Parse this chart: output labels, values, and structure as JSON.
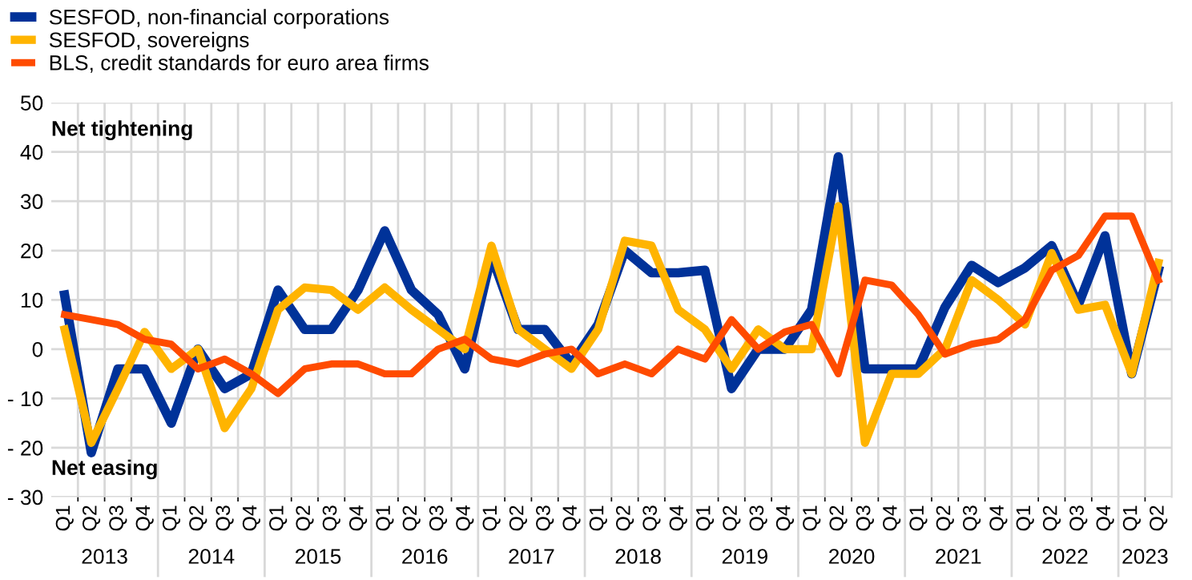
{
  "chart_data": {
    "type": "line",
    "categories": [
      "Q1",
      "Q2",
      "Q3",
      "Q4",
      "Q1",
      "Q2",
      "Q3",
      "Q4",
      "Q1",
      "Q2",
      "Q3",
      "Q4",
      "Q1",
      "Q2",
      "Q3",
      "Q4",
      "Q1",
      "Q2",
      "Q3",
      "Q4",
      "Q1",
      "Q2",
      "Q3",
      "Q4",
      "Q1",
      "Q2",
      "Q3",
      "Q4",
      "Q1",
      "Q2",
      "Q3",
      "Q4",
      "Q1",
      "Q2",
      "Q3",
      "Q4",
      "Q1",
      "Q2",
      "Q3",
      "Q4",
      "Q1",
      "Q2"
    ],
    "series": [
      {
        "name": "SESFOD, non-financial corporations",
        "color": "#003299",
        "values": [
          11,
          -21,
          -4,
          -4,
          -15,
          0,
          -8,
          -5,
          12,
          4,
          4,
          12,
          24,
          12,
          7,
          -4,
          19,
          4,
          4,
          -3,
          5,
          20,
          15.5,
          15.5,
          16,
          -8,
          0,
          0,
          8,
          39,
          -4,
          -4,
          -4,
          8.5,
          17,
          13.5,
          16.5,
          21,
          9,
          23,
          -5,
          16
        ]
      },
      {
        "name": "SESFOD, sovereigns",
        "color": "#ffb400",
        "values": [
          4,
          -19,
          -8,
          3.5,
          -4,
          0,
          -16,
          -8,
          8,
          12.5,
          12,
          8,
          12.5,
          8,
          4,
          0,
          21,
          4,
          0,
          -4,
          4,
          22,
          21,
          8,
          4,
          -4,
          4,
          0,
          0,
          29,
          -19,
          -5,
          -5,
          0,
          14,
          10,
          5,
          19.5,
          8,
          9,
          -5,
          17.5
        ]
      },
      {
        "name": "BLS, credit standards for euro area firms",
        "color": "#ff4b00",
        "values": [
          7,
          6,
          5,
          2,
          1,
          -4,
          -2,
          -5,
          -9,
          -4,
          -3,
          -3,
          -5,
          -5,
          0,
          2,
          -2,
          -3,
          -1,
          0,
          -5,
          -3,
          -5,
          0,
          -2,
          6,
          0,
          3.5,
          5,
          -5,
          14,
          13,
          7,
          -1,
          1,
          2,
          6,
          16,
          19,
          27,
          27,
          14
        ]
      }
    ],
    "ylim": [
      -30,
      50
    ],
    "yticks": [
      {
        "value": -30,
        "label": "- 30"
      },
      {
        "value": -20,
        "label": "- 20"
      },
      {
        "value": -10,
        "label": "- 10"
      },
      0,
      10,
      20,
      30,
      40,
      50
    ],
    "grid": true,
    "legend": "top left",
    "marker": "none",
    "line_style": "solid",
    "annotations": [
      "Net tightening",
      "Net easing",
      "2013",
      "2014",
      "2015",
      "2016",
      "2017",
      "2018",
      "2019",
      "2020",
      "2021",
      "2022",
      "2023"
    ]
  }
}
